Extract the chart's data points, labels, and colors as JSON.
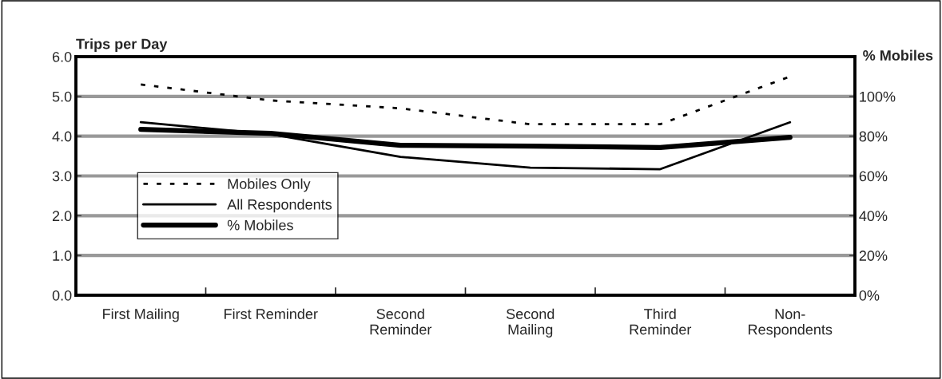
{
  "chart_data": {
    "type": "line",
    "ylabel": "Trips per Day",
    "y2label": "% Mobiles",
    "categories": [
      "First Mailing",
      "First Reminder",
      "Second\nReminder",
      "Second\nMailing",
      "Third\nReminder",
      "Non-\nRespondents"
    ],
    "series": [
      {
        "name": "Mobiles Only",
        "color": "#000000",
        "line_style": "dotted",
        "values": [
          5.3,
          4.9,
          4.7,
          4.3,
          4.3,
          5.5
        ]
      },
      {
        "name": "All Respondents",
        "color": "#000000",
        "line_style": "solid",
        "values": [
          4.35,
          4.05,
          3.48,
          3.21,
          3.17,
          4.35
        ]
      },
      {
        "name": "% Mobiles",
        "color": "#000000",
        "line_style": "solid",
        "axis": "y2",
        "values": [
          83.4,
          81.4,
          75.4,
          75,
          74.3,
          79.4
        ]
      }
    ],
    "ylim": [
      0,
      6
    ],
    "yticks": [
      {
        "value": 0,
        "label": "0.0"
      },
      {
        "value": 1,
        "label": "1.0"
      },
      {
        "value": 2,
        "label": "2.0"
      },
      {
        "value": 3,
        "label": "3.0"
      },
      {
        "value": 4,
        "label": "4.0"
      },
      {
        "value": 5,
        "label": "5.0"
      },
      {
        "value": 6,
        "label": "6.0"
      }
    ],
    "y2lim": [
      0,
      120
    ],
    "y2ticks": [
      {
        "value": 0,
        "label": "0%"
      },
      {
        "value": 20,
        "label": "20%"
      },
      {
        "value": 40,
        "label": "40%"
      },
      {
        "value": 60,
        "label": "60%"
      },
      {
        "value": 80,
        "label": "80%"
      },
      {
        "value": 100,
        "label": "100%"
      }
    ],
    "grid": "y",
    "legend": "center left",
    "marker": "none"
  }
}
